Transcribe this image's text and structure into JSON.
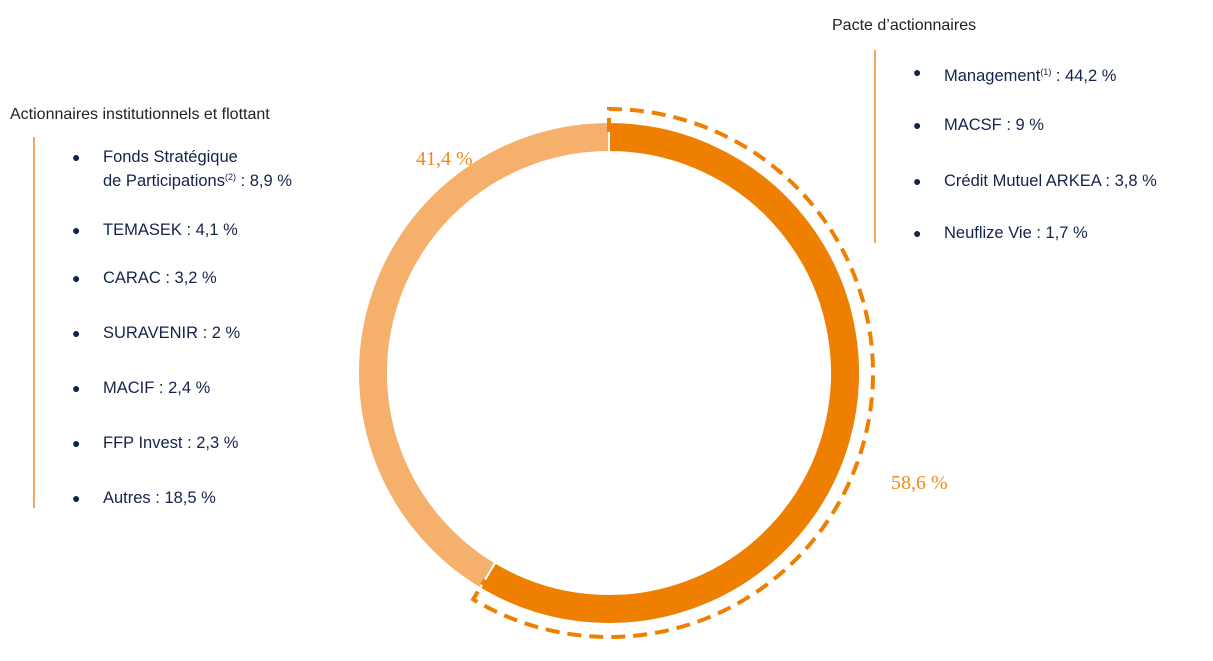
{
  "chart_data": {
    "type": "pie",
    "variant": "donut",
    "slices": [
      {
        "label": "Pacte d’actionnaires",
        "value": 58.6,
        "display": "58,6 %",
        "color": "#ee7f00"
      },
      {
        "label": "Actionnaires institutionnels et flottant",
        "value": 41.4,
        "display": "41,4 %",
        "color": "#f5b16c"
      }
    ],
    "groups": {
      "right": {
        "title": "Pacte d’actionnaires",
        "items": [
          {
            "name": "Management",
            "sup": "(1)",
            "value": " : 44,2 %"
          },
          {
            "name": "MACSF",
            "sup": "",
            "value": " : 9 %"
          },
          {
            "name": "Crédit Mutuel ARKEA",
            "sup": "",
            "value": " : 3,8 %"
          },
          {
            "name": "Neuflize Vie",
            "sup": "",
            "value": " : 1,7 %"
          }
        ]
      },
      "left": {
        "title": "Actionnaires institutionnels et flottant",
        "items": [
          {
            "name_line1": "Fonds Stratégique",
            "name": "de Participations",
            "sup": "(2)",
            "value": " : 8,9 %"
          },
          {
            "name": "TEMASEK",
            "sup": "",
            "value": " : 4,1 %"
          },
          {
            "name": "CARAC",
            "sup": "",
            "value": " : 3,2 %"
          },
          {
            "name": "SURAVENIR",
            "sup": "",
            "value": " : 2 %"
          },
          {
            "name": "MACIF",
            "sup": "",
            "value": " : 2,4 %"
          },
          {
            "name": "FFP Invest",
            "sup": "",
            "value": " : 2,3 %"
          },
          {
            "name": "Autres",
            "sup": "",
            "value": " : 18,5 %"
          }
        ]
      }
    },
    "bracket_color": "#ee7f00",
    "divider_color": "#f0a85c"
  }
}
